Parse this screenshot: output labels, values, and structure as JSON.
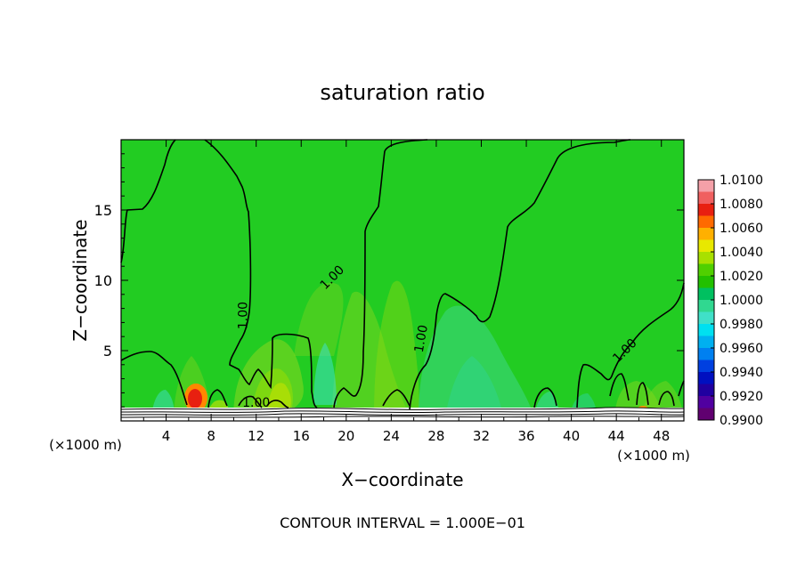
{
  "chart_data": {
    "type": "heatmap",
    "title": "saturation ratio",
    "xlabel": "X−coordinate",
    "ylabel": "Z−coordinate",
    "x_unit_left": "(×1000 m)",
    "x_unit_right": "(×1000 m)",
    "footer": "CONTOUR INTERVAL = 1.000E−01",
    "xlim": [
      0,
      50
    ],
    "ylim": [
      0,
      20
    ],
    "xticks": [
      4,
      8,
      12,
      16,
      20,
      24,
      28,
      32,
      36,
      40,
      44,
      48
    ],
    "xtick_labels": [
      "4",
      "8",
      "12",
      "16",
      "20",
      "24",
      "28",
      "32",
      "36",
      "40",
      "44",
      "48"
    ],
    "yticks": [
      5,
      10,
      15
    ],
    "ytick_labels": [
      "5",
      "10",
      "15"
    ],
    "contour_labels": [
      {
        "text": "1.00",
        "x": 11.2,
        "y": 7.5,
        "angle": -90
      },
      {
        "text": "1.00",
        "x": 19.0,
        "y": 10.0,
        "angle": -45
      },
      {
        "text": "1.00",
        "x": 27.0,
        "y": 5.8,
        "angle": -80
      },
      {
        "text": "1.00",
        "x": 45.0,
        "y": 4.8,
        "angle": -45
      },
      {
        "text": "1.00",
        "x": 12.0,
        "y": 1.0,
        "angle": 0
      }
    ],
    "colorbar": {
      "values": [
        "1.0100",
        "1.0080",
        "1.0060",
        "1.0040",
        "1.0020",
        "1.0000",
        "0.9980",
        "0.9960",
        "0.9940",
        "0.9920",
        "0.9900"
      ],
      "colors": [
        "#f4a0a8",
        "#f06060",
        "#e82010",
        "#ff6a00",
        "#ffb000",
        "#e8e800",
        "#a8e000",
        "#50d000",
        "#22c000",
        "#00c060",
        "#30d890",
        "#40e0c8",
        "#00e0f0",
        "#00b0f0",
        "#0080f0",
        "#0040e0",
        "#0010c0",
        "#2000a0",
        "#5000a0",
        "#600070"
      ]
    },
    "contour_color": "#000000",
    "background_color": "#22cc22"
  }
}
